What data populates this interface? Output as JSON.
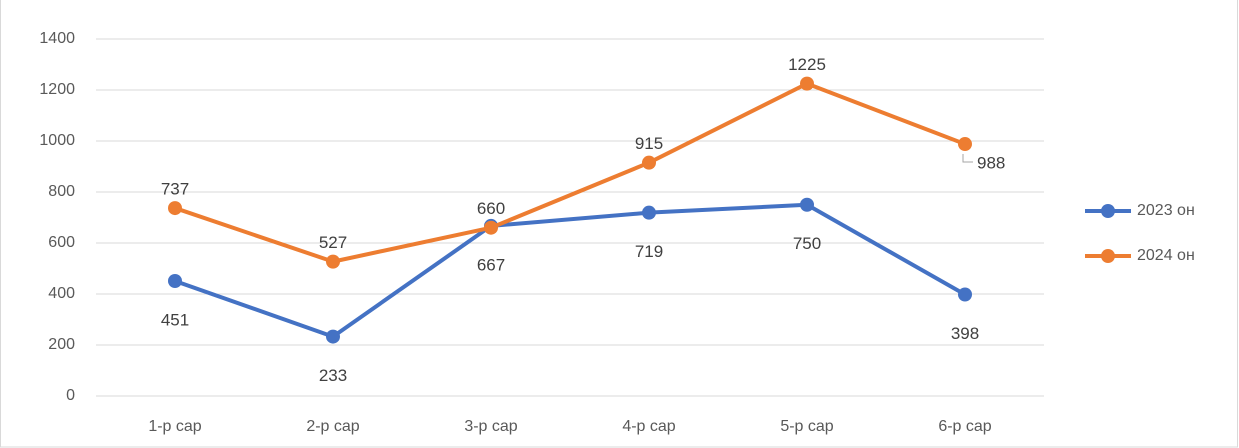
{
  "chart_data": {
    "type": "line",
    "categories": [
      "1-р сар",
      "2-р сар",
      "3-р сар",
      "4-р сар",
      "5-р сар",
      "6-р сар"
    ],
    "series": [
      {
        "name": "2023 он",
        "color": "#4472c4",
        "values": [
          451,
          233,
          667,
          719,
          750,
          398
        ]
      },
      {
        "name": "2024 он",
        "color": "#ed7d31",
        "values": [
          737,
          527,
          660,
          915,
          1225,
          988
        ]
      }
    ],
    "ylim": [
      0,
      1400
    ],
    "yticks": [
      0,
      200,
      400,
      600,
      800,
      1000,
      1200,
      1400
    ],
    "grid": true,
    "legend": "right"
  }
}
